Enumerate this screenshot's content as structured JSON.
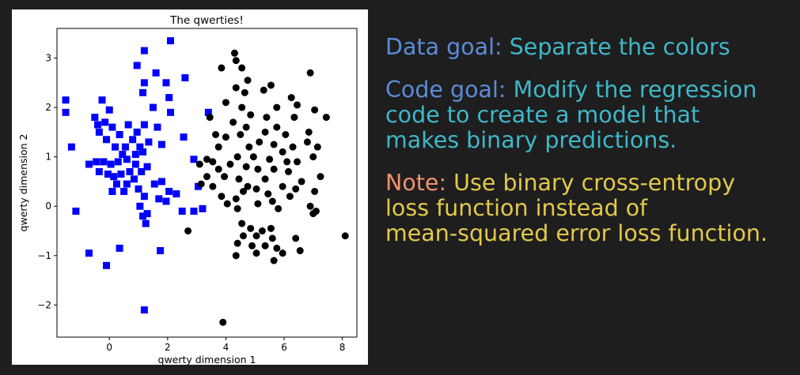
{
  "colors": {
    "background": "#1e1e1e",
    "data_goal_label": "#5b8bd9",
    "goal_body": "#3fb8c9",
    "note_label": "#f0926e",
    "note_body": "#e3c94b",
    "square_series": "#0000ff",
    "circle_series": "#000000"
  },
  "notes": {
    "data_goal": {
      "label": "Data goal:",
      "lines": [
        "Separate the colors"
      ]
    },
    "code_goal": {
      "label": "Code goal:",
      "lines": [
        "Modify the regression",
        "code to create a model that",
        "makes binary predictions."
      ]
    },
    "note": {
      "label": "Note:",
      "lines": [
        "Use binary cross-entropy",
        "loss function instead of",
        "mean-squared error loss function."
      ]
    }
  },
  "chart_data": {
    "type": "scatter",
    "title": "The qwerties!",
    "xlabel": "qwerty dimension 1",
    "ylabel": "qwerty dimension 2",
    "xlim": [
      -1.8,
      8.5
    ],
    "ylim": [
      -2.65,
      3.6
    ],
    "xticks": [
      0,
      2,
      4,
      6,
      8
    ],
    "yticks": [
      -2,
      -1,
      0,
      1,
      2,
      3
    ],
    "grid": false,
    "legend": "none",
    "series": [
      {
        "marker": "square",
        "color": "#0000ff",
        "points": [
          [
            2.1,
            3.35
          ],
          [
            1.2,
            3.15
          ],
          [
            0.95,
            2.85
          ],
          [
            1.6,
            2.7
          ],
          [
            2.6,
            2.6
          ],
          [
            1.95,
            2.5
          ],
          [
            1.2,
            2.5
          ],
          [
            1.15,
            2.3
          ],
          [
            2.05,
            2.2
          ],
          [
            -1.5,
            2.15
          ],
          [
            -1.5,
            1.9
          ],
          [
            1.5,
            2.0
          ],
          [
            2.1,
            1.9
          ],
          [
            -0.25,
            2.15
          ],
          [
            0.0,
            1.95
          ],
          [
            -0.5,
            1.8
          ],
          [
            -0.4,
            1.65
          ],
          [
            -0.15,
            1.7
          ],
          [
            0.1,
            1.6
          ],
          [
            0.65,
            1.65
          ],
          [
            1.2,
            1.65
          ],
          [
            -0.35,
            1.5
          ],
          [
            0.95,
            1.5
          ],
          [
            1.65,
            1.6
          ],
          [
            0.35,
            1.45
          ],
          [
            -0.1,
            1.35
          ],
          [
            0.8,
            1.35
          ],
          [
            1.35,
            1.3
          ],
          [
            2.55,
            1.4
          ],
          [
            -1.3,
            1.2
          ],
          [
            0.2,
            1.2
          ],
          [
            0.55,
            1.2
          ],
          [
            1.05,
            1.2
          ],
          [
            1.8,
            1.25
          ],
          [
            0.45,
            1.05
          ],
          [
            0.9,
            1.05
          ],
          [
            1.15,
            1.1
          ],
          [
            -0.7,
            0.85
          ],
          [
            -0.45,
            0.9
          ],
          [
            -0.2,
            0.9
          ],
          [
            0.05,
            0.85
          ],
          [
            0.3,
            0.9
          ],
          [
            0.6,
            0.95
          ],
          [
            0.9,
            0.85
          ],
          [
            1.3,
            0.8
          ],
          [
            2.9,
            0.95
          ],
          [
            -0.35,
            0.7
          ],
          [
            -0.05,
            0.65
          ],
          [
            0.4,
            0.65
          ],
          [
            0.7,
            0.7
          ],
          [
            1.1,
            0.7
          ],
          [
            0.25,
            0.45
          ],
          [
            0.6,
            0.45
          ],
          [
            0.85,
            0.55
          ],
          [
            1.55,
            0.45
          ],
          [
            1.8,
            0.5
          ],
          [
            0.1,
            0.3
          ],
          [
            0.5,
            0.3
          ],
          [
            1.0,
            0.35
          ],
          [
            2.05,
            0.3
          ],
          [
            2.3,
            0.25
          ],
          [
            1.2,
            0.2
          ],
          [
            1.7,
            0.15
          ],
          [
            1.95,
            0.1
          ],
          [
            3.05,
            0.4
          ],
          [
            1.05,
            0.0
          ],
          [
            1.3,
            -0.15
          ],
          [
            2.5,
            -0.1
          ],
          [
            2.9,
            -0.1
          ],
          [
            3.2,
            -0.05
          ],
          [
            -1.15,
            -0.1
          ],
          [
            1.25,
            -0.35
          ],
          [
            1.15,
            -0.2
          ],
          [
            -0.7,
            -0.95
          ],
          [
            0.35,
            -0.85
          ],
          [
            1.75,
            -0.9
          ],
          [
            -0.1,
            -1.2
          ],
          [
            1.2,
            -2.1
          ],
          [
            0.15,
            0.6
          ],
          [
            3.4,
            1.9
          ]
        ]
      },
      {
        "marker": "circle",
        "color": "#000000",
        "points": [
          [
            4.3,
            3.1
          ],
          [
            4.35,
            2.95
          ],
          [
            3.85,
            2.8
          ],
          [
            4.55,
            2.8
          ],
          [
            6.9,
            2.7
          ],
          [
            4.75,
            2.55
          ],
          [
            4.35,
            2.4
          ],
          [
            5.55,
            2.45
          ],
          [
            5.3,
            2.35
          ],
          [
            4.65,
            2.3
          ],
          [
            6.25,
            2.2
          ],
          [
            6.45,
            2.05
          ],
          [
            4.0,
            2.1
          ],
          [
            4.55,
            2.0
          ],
          [
            5.75,
            2.0
          ],
          [
            3.45,
            1.8
          ],
          [
            4.85,
            1.85
          ],
          [
            7.05,
            1.95
          ],
          [
            5.4,
            1.8
          ],
          [
            6.35,
            1.8
          ],
          [
            4.25,
            1.7
          ],
          [
            7.45,
            1.8
          ],
          [
            4.7,
            1.6
          ],
          [
            5.75,
            1.6
          ],
          [
            6.85,
            1.5
          ],
          [
            3.65,
            1.45
          ],
          [
            4.0,
            1.4
          ],
          [
            4.5,
            1.45
          ],
          [
            5.35,
            1.5
          ],
          [
            6.05,
            1.45
          ],
          [
            6.8,
            1.3
          ],
          [
            3.75,
            1.2
          ],
          [
            5.15,
            1.3
          ],
          [
            5.65,
            1.25
          ],
          [
            6.3,
            1.2
          ],
          [
            7.15,
            1.2
          ],
          [
            5.95,
            1.1
          ],
          [
            7.0,
            1.0
          ],
          [
            3.35,
            0.95
          ],
          [
            3.55,
            0.9
          ],
          [
            4.4,
            1.0
          ],
          [
            4.95,
            1.0
          ],
          [
            5.5,
            0.95
          ],
          [
            6.45,
            0.9
          ],
          [
            3.1,
            0.85
          ],
          [
            3.75,
            0.75
          ],
          [
            4.15,
            0.85
          ],
          [
            4.7,
            0.8
          ],
          [
            5.1,
            0.75
          ],
          [
            5.65,
            0.75
          ],
          [
            6.15,
            0.7
          ],
          [
            3.35,
            0.6
          ],
          [
            3.95,
            0.6
          ],
          [
            4.45,
            0.55
          ],
          [
            5.35,
            0.55
          ],
          [
            6.6,
            0.5
          ],
          [
            3.15,
            0.45
          ],
          [
            3.55,
            0.4
          ],
          [
            4.75,
            0.4
          ],
          [
            5.05,
            0.35
          ],
          [
            5.95,
            0.4
          ],
          [
            6.4,
            0.35
          ],
          [
            7.05,
            0.3
          ],
          [
            3.85,
            0.2
          ],
          [
            4.35,
            0.15
          ],
          [
            4.6,
            0.3
          ],
          [
            5.45,
            0.25
          ],
          [
            6.2,
            0.2
          ],
          [
            4.05,
            0.05
          ],
          [
            4.4,
            -0.05
          ],
          [
            5.1,
            0.05
          ],
          [
            5.6,
            0.1
          ],
          [
            6.9,
            0.0
          ],
          [
            7.25,
            0.6
          ],
          [
            5.8,
            -0.05
          ],
          [
            7.1,
            -0.1
          ],
          [
            4.55,
            -0.35
          ],
          [
            4.85,
            -0.45
          ],
          [
            5.25,
            -0.5
          ],
          [
            5.55,
            -0.45
          ],
          [
            2.7,
            -0.5
          ],
          [
            4.6,
            -0.6
          ],
          [
            5.05,
            -0.6
          ],
          [
            5.6,
            -0.65
          ],
          [
            6.4,
            -0.65
          ],
          [
            4.4,
            -0.75
          ],
          [
            4.9,
            -0.8
          ],
          [
            5.35,
            -0.8
          ],
          [
            5.75,
            -0.85
          ],
          [
            5.95,
            -0.95
          ],
          [
            6.55,
            -0.9
          ],
          [
            5.05,
            -0.95
          ],
          [
            4.35,
            -1.0
          ],
          [
            5.65,
            -1.1
          ],
          [
            8.1,
            -0.6
          ],
          [
            3.9,
            -2.35
          ],
          [
            7.0,
            -0.15
          ],
          [
            6.1,
            0.9
          ],
          [
            4.8,
            1.2
          ]
        ]
      }
    ]
  }
}
